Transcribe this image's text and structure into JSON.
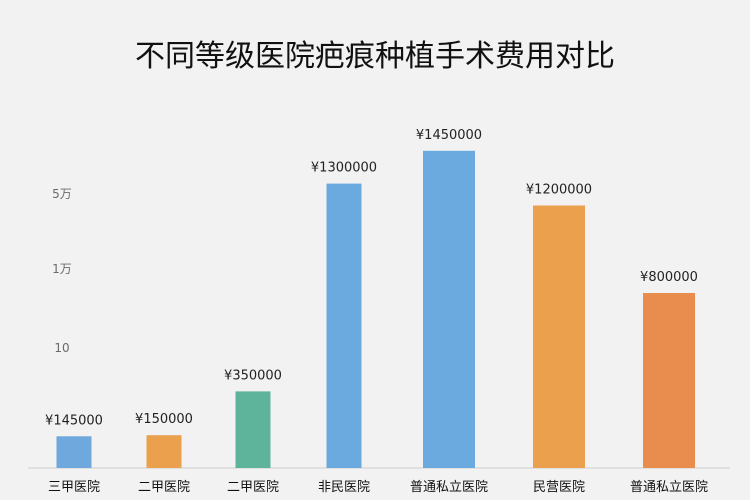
{
  "chart_data": {
    "type": "bar",
    "title": "不同等级医院疤痕种植手术费用对比",
    "xlabel": "",
    "ylabel": "",
    "y_tick_labels": [
      "5万",
      "1万",
      "10"
    ],
    "grid": false,
    "legend": "none",
    "ylim": [
      0,
      1600000
    ],
    "categories": [
      "三甲医院",
      "二甲医院",
      "二甲医院",
      "非民医院",
      "普通私立医院",
      "民营医院",
      "普通私立医院"
    ],
    "values": [
      145000,
      150000,
      350000,
      1300000,
      1450000,
      1200000,
      800000
    ],
    "data_labels": [
      "¥145000",
      "¥150000",
      "¥350000",
      "¥1300000",
      "¥1450000",
      "¥1200000",
      "¥800000"
    ],
    "colors": [
      "#6ea8dd",
      "#eba04e",
      "#5db49b",
      "#6aaadf",
      "#6aaadf",
      "#eba04e",
      "#e88d4e"
    ]
  }
}
